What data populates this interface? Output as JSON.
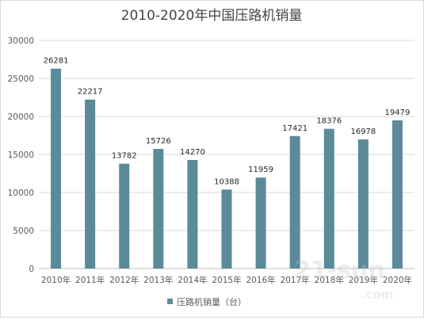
{
  "chart_data": {
    "type": "bar",
    "title": "2010-2020年中国压路机销量",
    "xlabel": "",
    "ylabel": "",
    "categories": [
      "2010年",
      "2011年",
      "2012年",
      "2013年",
      "2014年",
      "2015年",
      "2016年",
      "2017年",
      "2018年",
      "2019年",
      "2020年"
    ],
    "series": [
      {
        "name": "压路机销量（台）",
        "values": [
          26281,
          22217,
          13782,
          15726,
          14270,
          10388,
          11959,
          17421,
          18376,
          16978,
          19479
        ]
      }
    ],
    "ylim": [
      0,
      30000
    ],
    "yticks": [
      0,
      5000,
      10000,
      15000,
      20000,
      25000,
      30000
    ],
    "grid": true,
    "legend_position": "bottom",
    "bar_color": "#5b8a99",
    "watermark": "21-sun.com"
  }
}
